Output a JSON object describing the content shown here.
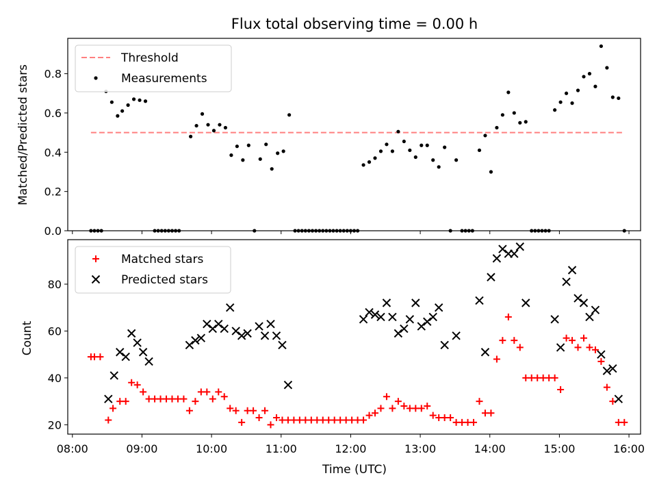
{
  "title": "Flux total observing time = 0.00 h",
  "chart_data": [
    {
      "type": "scatter",
      "ylabel": "Matched/Predicted stars",
      "xlabel": "",
      "ylim": [
        0,
        0.98
      ],
      "xlim": [
        "07:56",
        "16:10"
      ],
      "yticks": [
        0.0,
        0.2,
        0.4,
        0.6,
        0.8
      ],
      "ytick_labels": [
        "0.0",
        "0.2",
        "0.4",
        "0.6",
        "0.8"
      ],
      "grid": false,
      "legend_position": "top-left",
      "threshold": {
        "name": "Threshold",
        "value": 0.5,
        "x_start": "08:16",
        "x_end": "15:56",
        "color": "#ff7f7f"
      },
      "series": [
        {
          "name": "Measurements",
          "color": "#000000",
          "marker": "dot",
          "points": [
            [
              "08:16",
              0.0
            ],
            [
              "08:19",
              0.0
            ],
            [
              "08:22",
              0.0
            ],
            [
              "08:25",
              0.0
            ],
            [
              "08:29",
              0.71
            ],
            [
              "08:34",
              0.655
            ],
            [
              "08:39",
              0.585
            ],
            [
              "08:43",
              0.61
            ],
            [
              "08:48",
              0.64
            ],
            [
              "08:53",
              0.67
            ],
            [
              "08:58",
              0.665
            ],
            [
              "09:03",
              0.66
            ],
            [
              "09:11",
              0.0
            ],
            [
              "09:14",
              0.0
            ],
            [
              "09:17",
              0.0
            ],
            [
              "09:20",
              0.0
            ],
            [
              "09:23",
              0.0
            ],
            [
              "09:26",
              0.0
            ],
            [
              "09:29",
              0.0
            ],
            [
              "09:32",
              0.0
            ],
            [
              "09:42",
              0.48
            ],
            [
              "09:47",
              0.535
            ],
            [
              "09:52",
              0.595
            ],
            [
              "09:57",
              0.54
            ],
            [
              "10:02",
              0.51
            ],
            [
              "10:07",
              0.54
            ],
            [
              "10:12",
              0.525
            ],
            [
              "10:17",
              0.385
            ],
            [
              "10:22",
              0.43
            ],
            [
              "10:27",
              0.36
            ],
            [
              "10:32",
              0.435
            ],
            [
              "10:37",
              0.0
            ],
            [
              "10:42",
              0.365
            ],
            [
              "10:47",
              0.44
            ],
            [
              "10:52",
              0.315
            ],
            [
              "10:57",
              0.395
            ],
            [
              "11:02",
              0.405
            ],
            [
              "11:07",
              0.59
            ],
            [
              "11:12",
              0.0
            ],
            [
              "11:15",
              0.0
            ],
            [
              "11:18",
              0.0
            ],
            [
              "11:21",
              0.0
            ],
            [
              "11:24",
              0.0
            ],
            [
              "11:27",
              0.0
            ],
            [
              "11:30",
              0.0
            ],
            [
              "11:33",
              0.0
            ],
            [
              "11:36",
              0.0
            ],
            [
              "11:39",
              0.0
            ],
            [
              "11:42",
              0.0
            ],
            [
              "11:45",
              0.0
            ],
            [
              "11:48",
              0.0
            ],
            [
              "11:51",
              0.0
            ],
            [
              "11:54",
              0.0
            ],
            [
              "11:57",
              0.0
            ],
            [
              "12:00",
              0.0
            ],
            [
              "12:03",
              0.0
            ],
            [
              "12:06",
              0.0
            ],
            [
              "12:11",
              0.335
            ],
            [
              "12:16",
              0.35
            ],
            [
              "12:21",
              0.37
            ],
            [
              "12:26",
              0.405
            ],
            [
              "12:31",
              0.44
            ],
            [
              "12:36",
              0.405
            ],
            [
              "12:41",
              0.505
            ],
            [
              "12:46",
              0.455
            ],
            [
              "12:51",
              0.41
            ],
            [
              "12:56",
              0.375
            ],
            [
              "13:01",
              0.435
            ],
            [
              "13:06",
              0.435
            ],
            [
              "13:11",
              0.36
            ],
            [
              "13:16",
              0.325
            ],
            [
              "13:21",
              0.425
            ],
            [
              "13:26",
              0.0
            ],
            [
              "13:31",
              0.36
            ],
            [
              "13:36",
              0.0
            ],
            [
              "13:39",
              0.0
            ],
            [
              "13:42",
              0.0
            ],
            [
              "13:45",
              0.0
            ],
            [
              "13:51",
              0.41
            ],
            [
              "13:56",
              0.485
            ],
            [
              "14:01",
              0.3
            ],
            [
              "14:06",
              0.525
            ],
            [
              "14:11",
              0.59
            ],
            [
              "14:16",
              0.705
            ],
            [
              "14:21",
              0.6
            ],
            [
              "14:26",
              0.55
            ],
            [
              "14:31",
              0.555
            ],
            [
              "14:36",
              0.0
            ],
            [
              "14:39",
              0.0
            ],
            [
              "14:42",
              0.0
            ],
            [
              "14:45",
              0.0
            ],
            [
              "14:48",
              0.0
            ],
            [
              "14:51",
              0.0
            ],
            [
              "14:56",
              0.615
            ],
            [
              "15:01",
              0.655
            ],
            [
              "15:06",
              0.7
            ],
            [
              "15:11",
              0.65
            ],
            [
              "15:16",
              0.715
            ],
            [
              "15:21",
              0.785
            ],
            [
              "15:26",
              0.8
            ],
            [
              "15:31",
              0.735
            ],
            [
              "15:36",
              0.94
            ],
            [
              "15:41",
              0.83
            ],
            [
              "15:46",
              0.68
            ],
            [
              "15:51",
              0.675
            ],
            [
              "15:56",
              0.0
            ]
          ]
        }
      ]
    },
    {
      "type": "scatter",
      "ylabel": "Count",
      "xlabel": "Time (UTC)",
      "ylim": [
        16,
        99
      ],
      "xlim": [
        "07:56",
        "16:10"
      ],
      "yticks": [
        20,
        40,
        60,
        80
      ],
      "ytick_labels": [
        "20",
        "40",
        "60",
        "80"
      ],
      "xticks": [
        "08:00",
        "09:00",
        "10:00",
        "11:00",
        "12:00",
        "13:00",
        "14:00",
        "15:00",
        "16:00"
      ],
      "grid": false,
      "legend_position": "top-left",
      "series": [
        {
          "name": "Matched stars",
          "color": "#ff0000",
          "marker": "plus",
          "points": [
            [
              "08:16",
              49
            ],
            [
              "08:19",
              49
            ],
            [
              "08:24",
              49
            ],
            [
              "08:31",
              22
            ],
            [
              "08:35",
              27
            ],
            [
              "08:41",
              30
            ],
            [
              "08:46",
              30
            ],
            [
              "08:51",
              38
            ],
            [
              "08:56",
              37
            ],
            [
              "09:01",
              34
            ],
            [
              "09:06",
              31
            ],
            [
              "09:11",
              31
            ],
            [
              "09:16",
              31
            ],
            [
              "09:21",
              31
            ],
            [
              "09:26",
              31
            ],
            [
              "09:31",
              31
            ],
            [
              "09:36",
              31
            ],
            [
              "09:41",
              26
            ],
            [
              "09:46",
              30
            ],
            [
              "09:51",
              34
            ],
            [
              "09:56",
              34
            ],
            [
              "10:01",
              31
            ],
            [
              "10:06",
              34
            ],
            [
              "10:11",
              32
            ],
            [
              "10:16",
              27
            ],
            [
              "10:21",
              26
            ],
            [
              "10:26",
              21
            ],
            [
              "10:31",
              26
            ],
            [
              "10:36",
              26
            ],
            [
              "10:41",
              23
            ],
            [
              "10:46",
              26
            ],
            [
              "10:51",
              20
            ],
            [
              "10:56",
              23
            ],
            [
              "11:01",
              22
            ],
            [
              "11:06",
              22
            ],
            [
              "11:11",
              22
            ],
            [
              "11:16",
              22
            ],
            [
              "11:21",
              22
            ],
            [
              "11:26",
              22
            ],
            [
              "11:31",
              22
            ],
            [
              "11:36",
              22
            ],
            [
              "11:41",
              22
            ],
            [
              "11:46",
              22
            ],
            [
              "11:51",
              22
            ],
            [
              "11:56",
              22
            ],
            [
              "12:01",
              22
            ],
            [
              "12:06",
              22
            ],
            [
              "12:11",
              22
            ],
            [
              "12:16",
              24
            ],
            [
              "12:21",
              25
            ],
            [
              "12:26",
              27
            ],
            [
              "12:31",
              32
            ],
            [
              "12:36",
              27
            ],
            [
              "12:41",
              30
            ],
            [
              "12:46",
              28
            ],
            [
              "12:51",
              27
            ],
            [
              "12:56",
              27
            ],
            [
              "13:01",
              27
            ],
            [
              "13:06",
              28
            ],
            [
              "13:11",
              24
            ],
            [
              "13:16",
              23
            ],
            [
              "13:21",
              23
            ],
            [
              "13:26",
              23
            ],
            [
              "13:31",
              21
            ],
            [
              "13:36",
              21
            ],
            [
              "13:41",
              21
            ],
            [
              "13:46",
              21
            ],
            [
              "13:51",
              30
            ],
            [
              "13:56",
              25
            ],
            [
              "14:01",
              25
            ],
            [
              "14:06",
              48
            ],
            [
              "14:11",
              56
            ],
            [
              "14:16",
              66
            ],
            [
              "14:21",
              56
            ],
            [
              "14:26",
              53
            ],
            [
              "14:31",
              40
            ],
            [
              "14:36",
              40
            ],
            [
              "14:41",
              40
            ],
            [
              "14:46",
              40
            ],
            [
              "14:51",
              40
            ],
            [
              "14:56",
              40
            ],
            [
              "15:01",
              35
            ],
            [
              "15:06",
              57
            ],
            [
              "15:11",
              56
            ],
            [
              "15:16",
              53
            ],
            [
              "15:21",
              57
            ],
            [
              "15:26",
              53
            ],
            [
              "15:31",
              52
            ],
            [
              "15:36",
              47
            ],
            [
              "15:41",
              36
            ],
            [
              "15:46",
              30
            ],
            [
              "15:51",
              21
            ],
            [
              "15:56",
              21
            ]
          ]
        },
        {
          "name": "Predicted stars",
          "color": "#000000",
          "marker": "x",
          "points": [
            [
              "08:31",
              31
            ],
            [
              "08:36",
              41
            ],
            [
              "08:41",
              51
            ],
            [
              "08:46",
              49
            ],
            [
              "08:51",
              59
            ],
            [
              "08:56",
              55
            ],
            [
              "09:01",
              51
            ],
            [
              "09:06",
              47
            ],
            [
              "09:41",
              54
            ],
            [
              "09:46",
              56
            ],
            [
              "09:51",
              57
            ],
            [
              "09:56",
              63
            ],
            [
              "10:01",
              61
            ],
            [
              "10:06",
              63
            ],
            [
              "10:11",
              61
            ],
            [
              "10:16",
              70
            ],
            [
              "10:21",
              60
            ],
            [
              "10:26",
              58
            ],
            [
              "10:31",
              59
            ],
            [
              "10:41",
              62
            ],
            [
              "10:46",
              58
            ],
            [
              "10:51",
              63
            ],
            [
              "10:56",
              58
            ],
            [
              "11:01",
              54
            ],
            [
              "11:06",
              37
            ],
            [
              "12:11",
              65
            ],
            [
              "12:16",
              68
            ],
            [
              "12:21",
              67
            ],
            [
              "12:26",
              66
            ],
            [
              "12:31",
              72
            ],
            [
              "12:36",
              66
            ],
            [
              "12:41",
              59
            ],
            [
              "12:46",
              61
            ],
            [
              "12:51",
              65
            ],
            [
              "12:56",
              72
            ],
            [
              "13:01",
              62
            ],
            [
              "13:06",
              64
            ],
            [
              "13:11",
              66
            ],
            [
              "13:16",
              70
            ],
            [
              "13:21",
              54
            ],
            [
              "13:31",
              58
            ],
            [
              "13:51",
              73
            ],
            [
              "13:56",
              51
            ],
            [
              "14:01",
              83
            ],
            [
              "14:06",
              91
            ],
            [
              "14:11",
              95
            ],
            [
              "14:16",
              93
            ],
            [
              "14:21",
              93
            ],
            [
              "14:26",
              96
            ],
            [
              "14:31",
              72
            ],
            [
              "14:56",
              65
            ],
            [
              "15:01",
              53
            ],
            [
              "15:06",
              81
            ],
            [
              "15:11",
              86
            ],
            [
              "15:16",
              74
            ],
            [
              "15:21",
              72
            ],
            [
              "15:26",
              66
            ],
            [
              "15:31",
              69
            ],
            [
              "15:36",
              50
            ],
            [
              "15:41",
              43
            ],
            [
              "15:46",
              44
            ],
            [
              "15:51",
              31
            ]
          ]
        }
      ]
    }
  ]
}
